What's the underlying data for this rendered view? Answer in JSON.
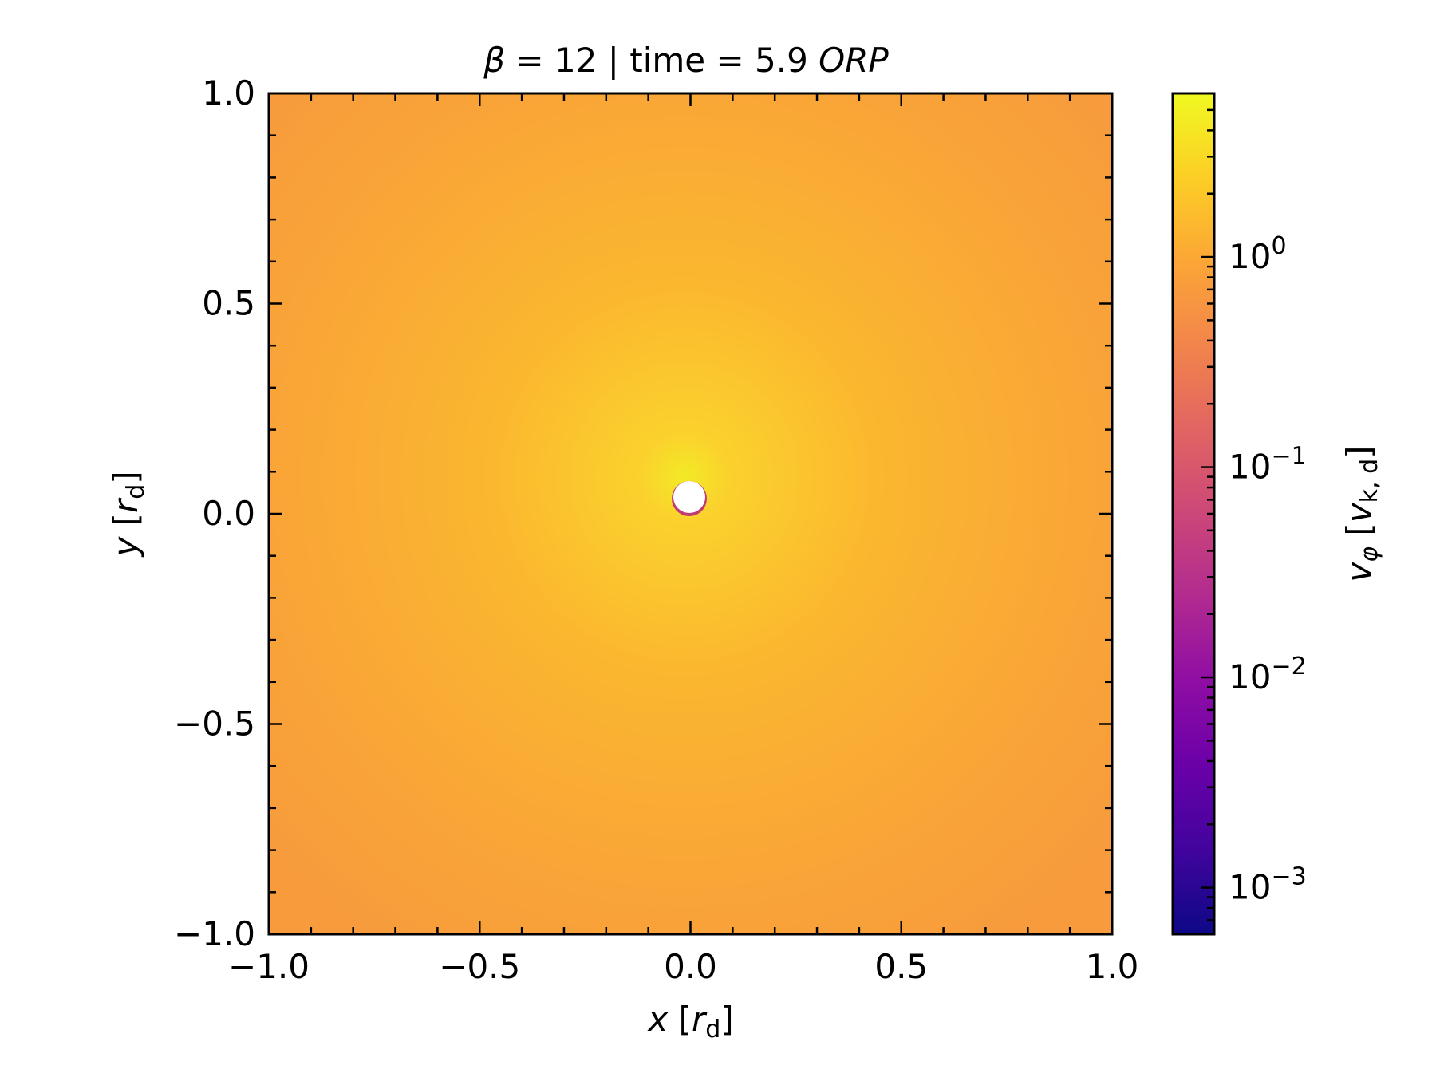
{
  "chart_data": {
    "type": "heatmap",
    "title_parts": {
      "beta_symbol": "β",
      "middle": " = 12 | time = 5.9 ",
      "italic_suffix": "ORP"
    },
    "xlabel": {
      "var": "x",
      "unit_base": "r",
      "unit_sub": "d"
    },
    "ylabel": {
      "var": "y",
      "unit_base": "r",
      "unit_sub": "d"
    },
    "colorbar_label": {
      "var": "v",
      "var_sub": "φ",
      "unit_base": "v",
      "unit_sub": "k, d"
    },
    "xlim": [
      -1.0,
      1.0
    ],
    "ylim": [
      -1.0,
      1.0
    ],
    "x_ticks": [
      -1.0,
      -0.5,
      0.0,
      0.5,
      1.0
    ],
    "x_tick_labels": [
      "−1.0",
      "−0.5",
      "0.0",
      "0.5",
      "1.0"
    ],
    "y_ticks": [
      -1.0,
      -0.5,
      0.0,
      0.5,
      1.0
    ],
    "y_tick_labels": [
      "−1.0",
      "−0.5",
      "0.0",
      "0.5",
      "1.0"
    ],
    "colorbar": {
      "scale": "log",
      "colormap": "plasma",
      "vmin": 0.0006,
      "vmax": 6.0,
      "ticks": [
        {
          "value": 0.001,
          "base": "10",
          "exp": "−3"
        },
        {
          "value": 0.01,
          "base": "10",
          "exp": "−2"
        },
        {
          "value": 0.1,
          "base": "10",
          "exp": "−1"
        },
        {
          "value": 1.0,
          "base": "10",
          "exp": "0"
        }
      ]
    },
    "field": {
      "description_values": "radially decreasing vφ, peak near origin, masked hole at center",
      "center": [
        0.0,
        0.04
      ],
      "hole_radius": 0.04,
      "value_at_edge": 1.1,
      "value_near_center": 4.5
    },
    "grid": false,
    "colors": {
      "outer": "#f89a3b",
      "mid": "#fbb62f",
      "inner": "#f2e826",
      "hole_rim": "#c03a76",
      "hole": "#ffffff"
    }
  }
}
